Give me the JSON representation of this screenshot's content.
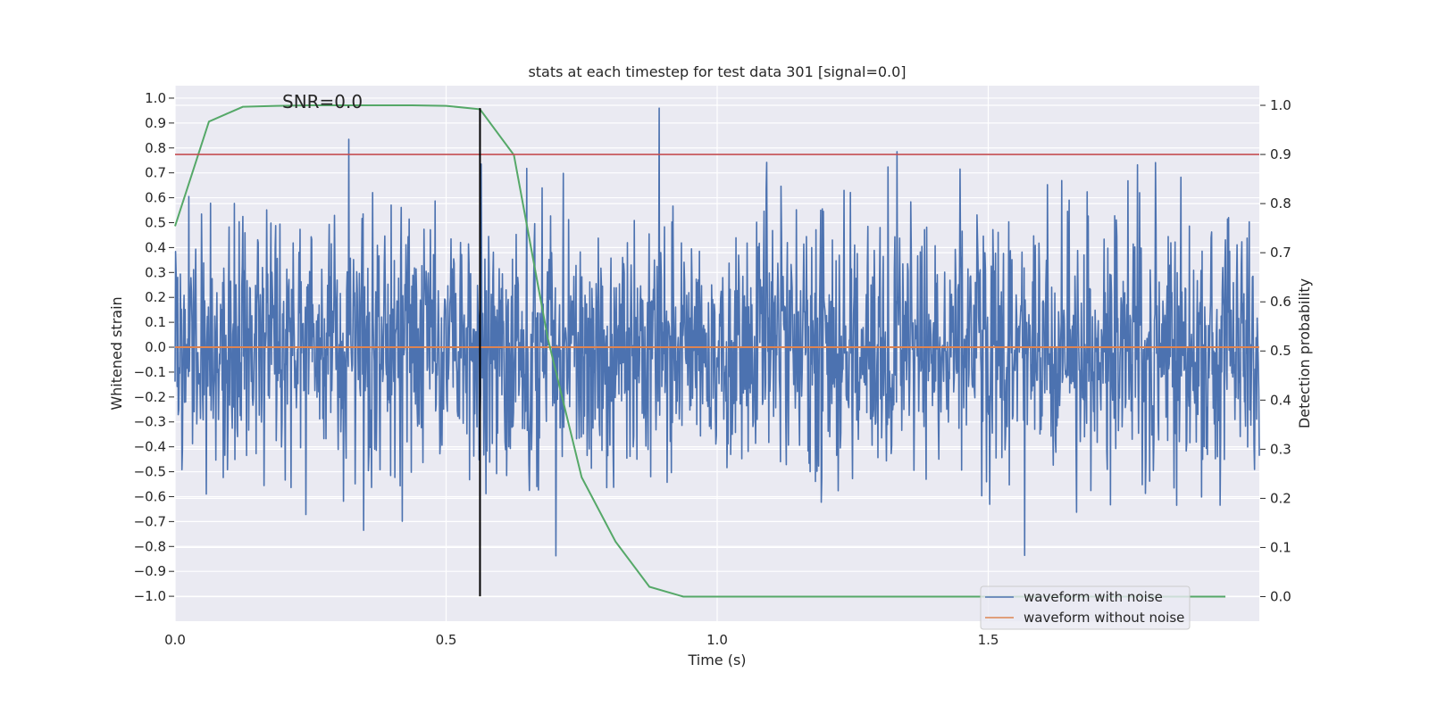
{
  "chart_data": {
    "type": "line",
    "title": "stats at each timestep for test data 301 [signal=0.0]",
    "xlabel": "Time (s)",
    "ylabel": "Whitened strain",
    "y2label": "Detection probability",
    "xlim": [
      0.0,
      2.0
    ],
    "ylim": [
      -1.1,
      1.05
    ],
    "y2lim": [
      -0.05,
      1.04
    ],
    "xticks": [
      0.0,
      0.5,
      1.0,
      1.5
    ],
    "xtick_labels": [
      "0.0",
      "0.5",
      "1.0",
      "1.5"
    ],
    "yticks": [
      -1.0,
      -0.9,
      -0.8,
      -0.7,
      -0.6,
      -0.5,
      -0.4,
      -0.3,
      -0.2,
      -0.1,
      0.0,
      0.1,
      0.2,
      0.3,
      0.4,
      0.5,
      0.6,
      0.7,
      0.8,
      0.9,
      1.0
    ],
    "ytick_labels": [
      "−1.0",
      "−0.9",
      "−0.8",
      "−0.7",
      "−0.6",
      "−0.5",
      "−0.4",
      "−0.3",
      "−0.2",
      "−0.1",
      "0.0",
      "0.1",
      "0.2",
      "0.3",
      "0.4",
      "0.5",
      "0.6",
      "0.7",
      "0.8",
      "0.9",
      "1.0"
    ],
    "y2ticks": [
      0.0,
      0.1,
      0.2,
      0.3,
      0.4,
      0.5,
      0.6,
      0.7,
      0.8,
      0.9,
      1.0
    ],
    "y2tick_labels": [
      "0.0",
      "0.1",
      "0.2",
      "0.3",
      "0.4",
      "0.5",
      "0.6",
      "0.7",
      "0.8",
      "0.9",
      "1.0"
    ],
    "grid": true,
    "legend_position": "lower-right",
    "annotation": "SNR=0.0",
    "series": [
      {
        "name": "waveform with noise",
        "color": "#4c72b0",
        "axis": "left",
        "kind": "noise",
        "num_points": 2048,
        "x_range": [
          0.0,
          2.0
        ],
        "approx_std": 0.26,
        "min": -1.0,
        "max": 0.96
      },
      {
        "name": "waveform without noise",
        "color": "#dd8452",
        "axis": "left",
        "x": [
          0.0,
          2.0
        ],
        "y": [
          0.0,
          0.0
        ]
      },
      {
        "color": "#55a868",
        "axis": "right",
        "x": [
          0.0,
          0.0625,
          0.125,
          0.1875,
          0.25,
          0.3125,
          0.375,
          0.4375,
          0.5,
          0.5625,
          0.625,
          0.6875,
          0.75,
          0.8125,
          0.875,
          0.9375,
          1.0,
          1.0625,
          1.125,
          1.1875,
          1.25,
          1.3125,
          1.375,
          1.4375,
          1.5,
          1.5625,
          1.625,
          1.6875,
          1.75,
          1.8125,
          1.875,
          1.9375
        ],
        "y": [
          0.754,
          0.967,
          0.997,
          0.999,
          1.0,
          1.0,
          1.0,
          1.0,
          0.999,
          0.992,
          0.899,
          0.526,
          0.243,
          0.112,
          0.02,
          0.0,
          0.0,
          0.0,
          0.0,
          0.0,
          0.0,
          0.0,
          0.0,
          0.0,
          0.0,
          0.0,
          0.0,
          0.0,
          0.0,
          0.0,
          0.0,
          0.0
        ]
      },
      {
        "color": "#c44e52",
        "axis": "right",
        "kind": "hline",
        "y": 0.9
      },
      {
        "color": "#000000",
        "axis": "left",
        "kind": "vline",
        "x": 0.5625,
        "y": [
          -1.0,
          0.96
        ]
      }
    ]
  }
}
